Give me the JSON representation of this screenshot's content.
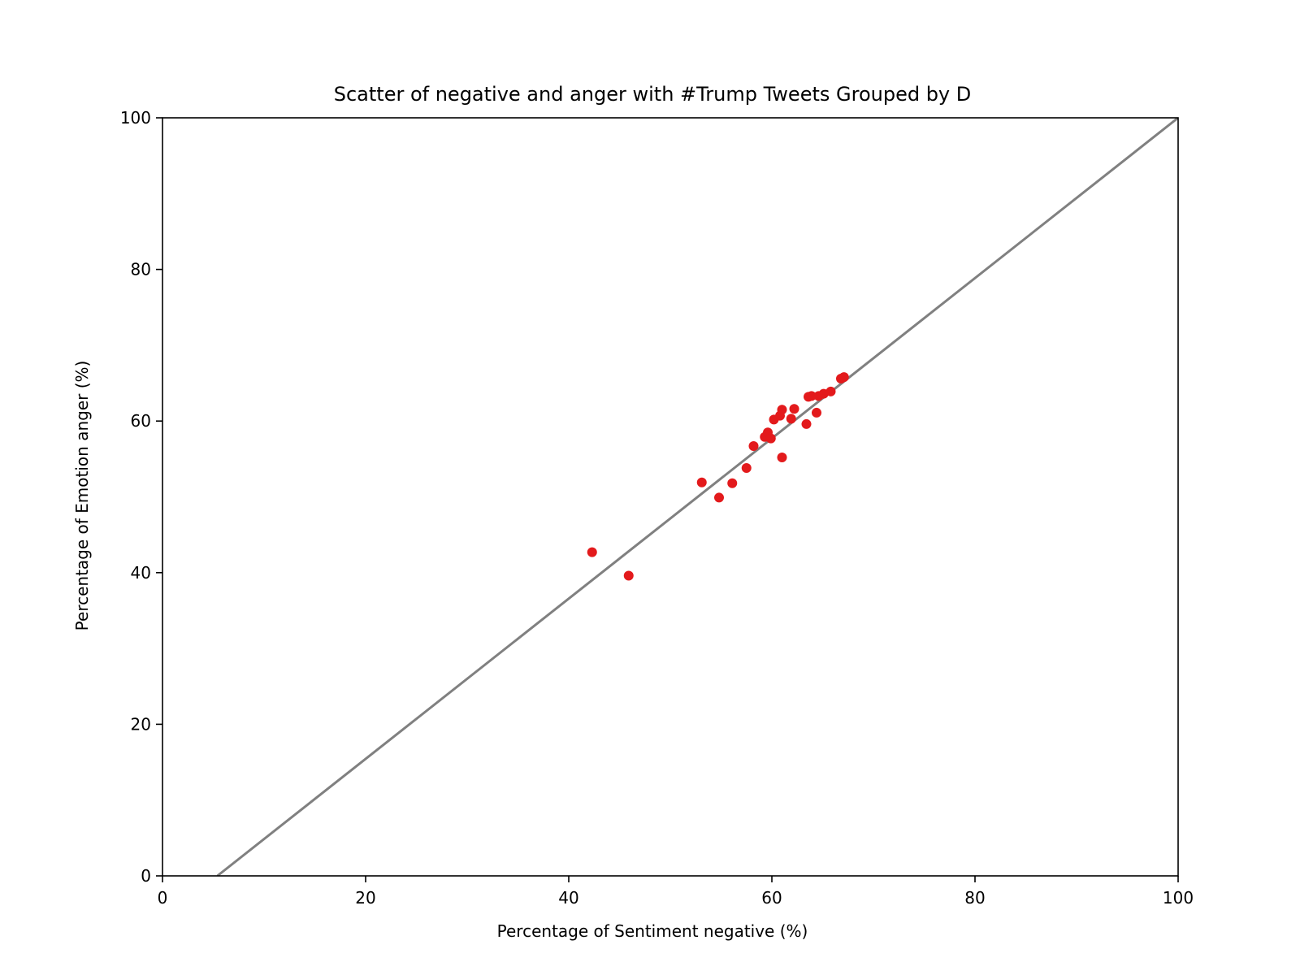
{
  "chart_data": {
    "type": "scatter",
    "title": "Scatter of negative and anger with #Trump Tweets Grouped by D",
    "xlabel": "Percentage of Sentiment negative (%)",
    "ylabel": "Percentage of Emotion anger (%)",
    "xlim": [
      0,
      100
    ],
    "ylim": [
      0,
      100
    ],
    "xticks": [
      0,
      20,
      40,
      60,
      80,
      100
    ],
    "yticks": [
      0,
      20,
      40,
      60,
      80,
      100
    ],
    "grid": false,
    "point_color": "#e31a1c",
    "fit_line_color": "#808080",
    "fit_line": {
      "x": [
        5.4,
        100
      ],
      "y": [
        0,
        100
      ]
    },
    "series": [
      {
        "name": "D",
        "points": [
          [
            42.3,
            42.7
          ],
          [
            45.9,
            39.6
          ],
          [
            53.1,
            51.9
          ],
          [
            54.8,
            49.9
          ],
          [
            56.1,
            51.8
          ],
          [
            57.5,
            53.8
          ],
          [
            58.2,
            56.7
          ],
          [
            59.3,
            57.9
          ],
          [
            59.6,
            58.5
          ],
          [
            59.9,
            57.7
          ],
          [
            60.2,
            60.2
          ],
          [
            60.8,
            60.7
          ],
          [
            61.0,
            61.5
          ],
          [
            61.0,
            55.2
          ],
          [
            61.9,
            60.3
          ],
          [
            62.2,
            61.6
          ],
          [
            63.4,
            59.6
          ],
          [
            63.6,
            63.2
          ],
          [
            63.9,
            63.3
          ],
          [
            64.4,
            61.1
          ],
          [
            64.6,
            63.3
          ],
          [
            65.1,
            63.6
          ],
          [
            65.8,
            63.9
          ],
          [
            66.8,
            65.6
          ],
          [
            67.1,
            65.8
          ]
        ]
      }
    ]
  }
}
